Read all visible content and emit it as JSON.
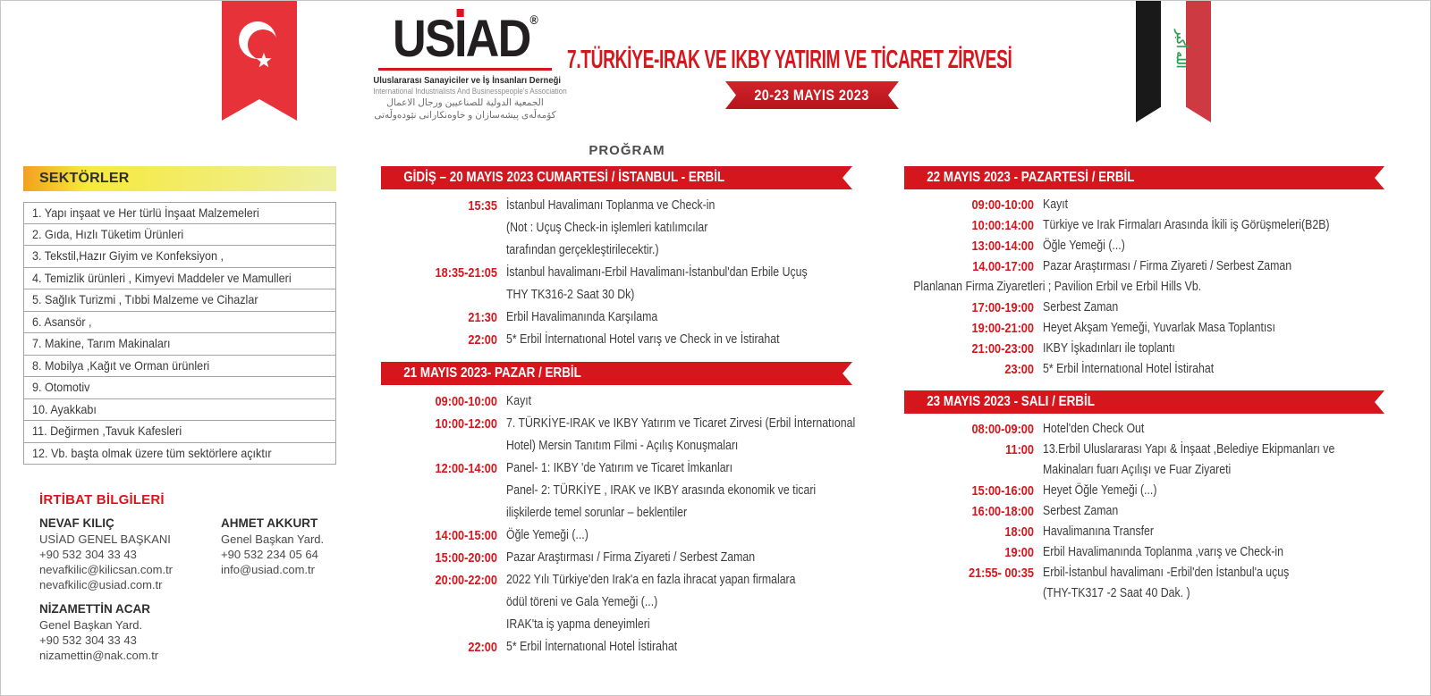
{
  "colors": {
    "accent_red": "#d6161d",
    "flag_red": "#e8323a",
    "iraq_red": "#ce3a42",
    "iraq_green": "#2f9e4f",
    "sector_yellow_start": "#f2a01e",
    "sector_yellow_end": "#eef0a0"
  },
  "logo": {
    "part_us": "US",
    "part_i": "I",
    "part_ad": "AD",
    "reg": "®",
    "subtitle_tr": "Uluslararası Sanayiciler ve İş İnsanları Derneği",
    "subtitle_en": "International Industrialists And Businesspeople's Association",
    "subtitle_ar": "الجمعية الدولية للصناعيين ورجال الاعمال",
    "subtitle_ku": "كۆمەڵەی پیشەسازان و خاوەنكارانی نێودەوڵەتی"
  },
  "header": {
    "title": "7.TÜRKİYE-IRAK VE IKBY YATIRIM VE TİCARET ZİRVESİ",
    "dates": "20-23 MAYIS 2023",
    "program_label": "PROĞRAM",
    "iraq_flag_text": "الله أكبر"
  },
  "sidebar": {
    "header": "SEKTÖRLER",
    "items": [
      "1. Yapı inşaat ve Her türlü İnşaat Malzemeleri",
      "2. Gıda, Hızlı Tüketim Ürünleri",
      "3. Tekstil,Hazır Giyim ve Konfeksiyon ,",
      "4. Temizlik ürünleri , Kimyevi Maddeler ve Mamulleri",
      "5. Sağlık Turizmi , Tıbbi Malzeme ve Cihazlar",
      "6. Asansör ,",
      "7. Makine, Tarım Makinaları",
      "8. Mobilya ,Kağıt ve Orman ürünleri",
      "9. Otomotiv",
      "10. Ayakkabı",
      "11. Değirmen ,Tavuk Kafesleri",
      "12. Vb. başta olmak üzere tüm sektörlere açıktır"
    ]
  },
  "contacts": {
    "header": "İRTİBAT BİLGİLERİ",
    "left": [
      {
        "name": "NEVAF KILIÇ",
        "lines": [
          "USİAD GENEL BAŞKANI",
          "+90 532 304 33 43",
          "nevafkilic@kilicsan.com.tr",
          "nevafkilic@usiad.com.tr"
        ]
      },
      {
        "name": "NİZAMETTİN ACAR",
        "lines": [
          "Genel Başkan Yard.",
          "+90 532 304 33 43",
          "nizamettin@nak.com.tr"
        ]
      }
    ],
    "right": [
      {
        "name": "AHMET AKKURT",
        "lines": [
          "Genel Başkan Yard.",
          "+90 532 234 05 64",
          "info@usiad.com.tr"
        ]
      }
    ]
  },
  "schedule": {
    "middle": [
      {
        "title": "GİDİŞ – 20 MAYIS 2023  CUMARTESİ / İSTANBUL - ERBİL",
        "items": [
          {
            "time": "15:35",
            "lines": [
              "İstanbul Havalimanı Toplanma ve Check-in",
              "(Not : Uçuş Check-in işlemleri katılımcılar",
              "tarafından gerçekleştirilecektir.)"
            ]
          },
          {
            "time": "18:35-21:05",
            "lines": [
              "İstanbul havalimanı-Erbil Havalimanı-İstanbul'dan Erbile Uçuş",
              "THY TK316-2 Saat 30 Dk)"
            ]
          },
          {
            "time": "21:30",
            "lines": [
              "Erbil Havalimanında Karşılama"
            ]
          },
          {
            "time": "22:00",
            "lines": [
              "5* Erbil İnternatıonal Hotel varış ve Check in ve İstirahat"
            ]
          }
        ]
      },
      {
        "title": "21 MAYIS 2023- PAZAR / ERBİL",
        "items": [
          {
            "time": "09:00-10:00",
            "lines": [
              "Kayıt"
            ]
          },
          {
            "time": "10:00-12:00",
            "lines": [
              "7. TÜRKİYE-IRAK ve IKBY Yatırım ve Ticaret Zirvesi (Erbil İnternatıonal",
              "Hotel) Mersin Tanıtım Filmi  -  Açılış Konuşmaları"
            ]
          },
          {
            "time": "12:00-14:00",
            "lines": [
              "Panel- 1: IKBY 'de Yatırım ve Ticaret İmkanları",
              "Panel- 2: TÜRKİYE , IRAK  ve IKBY  arasında ekonomik  ve ticari",
              "ilişkilerde temel sorunlar – beklentiler"
            ]
          },
          {
            "time": "14:00-15:00",
            "lines": [
              "Öğle Yemeği  (...)"
            ]
          },
          {
            "time": "15:00-20:00",
            "lines": [
              "Pazar Araştırması / Firma Ziyareti  / Serbest Zaman"
            ]
          },
          {
            "time": "20:00-22:00",
            "lines": [
              "2022 Yılı Türkiye'den Irak'a en fazla ihracat yapan firmalara",
              "ödül töreni ve Gala  Yemeği  (...)",
              "IRAK'ta iş yapma deneyimleri"
            ]
          },
          {
            "time": "22:00",
            "lines": [
              "5* Erbil İnternatıonal Hotel İstirahat"
            ]
          }
        ]
      }
    ],
    "right": [
      {
        "title": "22 MAYIS 2023 - PAZARTESİ / ERBİL",
        "items": [
          {
            "time": "09:00-10:00",
            "lines": [
              "Kayıt"
            ]
          },
          {
            "time": "10:00:14:00",
            "lines": [
              "Türkiye ve Irak Firmaları Arasında İkili iş Görüşmeleri(B2B)"
            ]
          },
          {
            "time": "13:00-14:00",
            "lines": [
              "Öğle Yemeği  (...)"
            ]
          },
          {
            "time": "14.00-17:00",
            "lines": [
              "Pazar Araştırması / Firma Ziyareti  / Serbest Zaman"
            ]
          },
          {
            "flush": true,
            "time": "",
            "lines": [
              "Planlanan Firma Ziyaretleri ; Pavilion Erbil  ve  Erbil Hills  Vb."
            ]
          },
          {
            "time": "17:00-19:00",
            "lines": [
              "Serbest Zaman"
            ]
          },
          {
            "time": "19:00-21:00",
            "lines": [
              "Heyet Akşam Yemeği, Yuvarlak Masa Toplantısı"
            ]
          },
          {
            "time": "21:00-23:00",
            "lines": [
              "IKBY İşkadınları ile toplantı"
            ]
          },
          {
            "time": "23:00",
            "lines": [
              "5* Erbil İnternatıonal Hotel İstirahat"
            ]
          }
        ]
      },
      {
        "title": "23 MAYIS 2023 - SALI / ERBİL",
        "items": [
          {
            "time": "08:00-09:00",
            "lines": [
              "Hotel'den Check Out"
            ]
          },
          {
            "time": "11:00",
            "lines": [
              "13.Erbil Uluslararası Yapı & İnşaat ,Belediye Ekipmanları ve",
              "Makinaları fuarı Açılışı ve Fuar Ziyareti"
            ]
          },
          {
            "time": "15:00-16:00",
            "lines": [
              "Heyet Öğle Yemeği  (...)"
            ]
          },
          {
            "time": "16:00-18:00",
            "lines": [
              "Serbest Zaman"
            ]
          },
          {
            "time": "18:00",
            "lines": [
              "Havalimanına Transfer"
            ]
          },
          {
            "time": "19:00",
            "lines": [
              "Erbil Havalimanında Toplanma ,varış ve Check-in"
            ]
          },
          {
            "time": "21:55- 00:35",
            "lines": [
              "Erbil-İstanbul havalimanı -Erbil'den İstanbul'a uçuş",
              "(THY-TK317 -2 Saat 40 Dak. )"
            ]
          }
        ]
      }
    ]
  }
}
